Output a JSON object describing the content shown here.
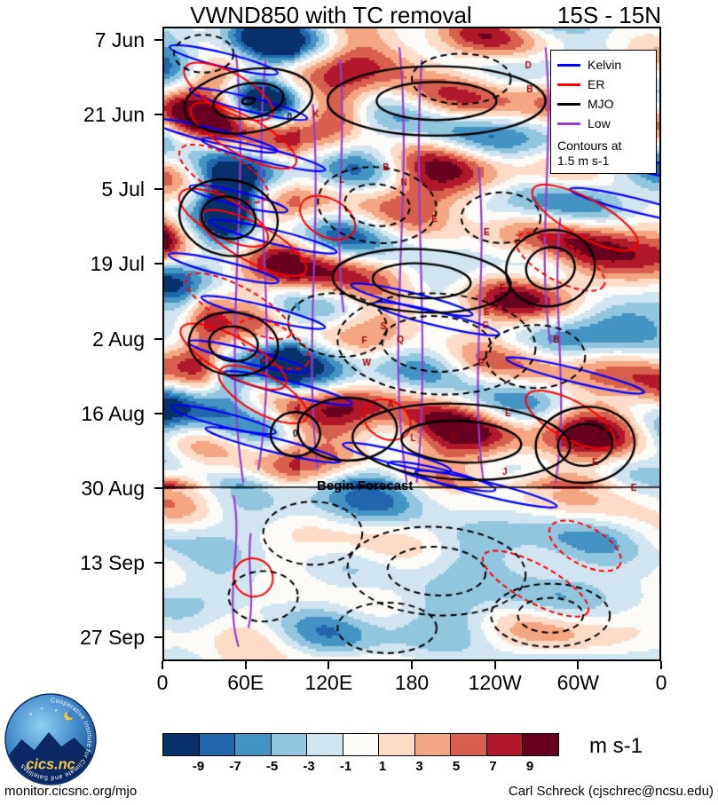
{
  "header": {
    "title": "VWND850 with TC removal",
    "lat_band": "15S - 15N"
  },
  "chart_data": {
    "type": "heatmap",
    "title": "VWND850 with TC removal",
    "lat_band": "15S - 15N",
    "description": "Time-longitude (Hovmoller) diagram of 850 hPa meridional wind anomalies with tropical cyclone removal, with wave-filtered contours overlaid",
    "x_ticks": [
      "0",
      "60E",
      "120E",
      "180",
      "120W",
      "60W",
      "0"
    ],
    "y_ticks": [
      "7 Jun",
      "21 Jun",
      "5 Jul",
      "19 Jul",
      "2 Aug",
      "16 Aug",
      "30 Aug",
      "13 Sep",
      "27 Sep"
    ],
    "annotation": "Begin Forecast",
    "forecast_fraction": 0.727,
    "legend": {
      "entries": [
        {
          "label": "Kelvin",
          "color": "#0000ff"
        },
        {
          "label": "ER",
          "color": "#ff0000"
        },
        {
          "label": "MJO",
          "color": "#000000"
        },
        {
          "label": "Low",
          "color": "#9440cf"
        }
      ],
      "note_line1": "Contours at",
      "note_line2": "1.5 m s-1"
    },
    "colorbar": {
      "labels": [
        "-9",
        "-7",
        "-5",
        "-3",
        "-1",
        "1",
        "3",
        "5",
        "7",
        "9"
      ],
      "colors": [
        "#08306b",
        "#2166ac",
        "#4393c3",
        "#92c5de",
        "#d1e5f0",
        "#fdfbf7",
        "#fddbc7",
        "#f4a582",
        "#d6604d",
        "#b2182b",
        "#67001f"
      ],
      "units": "m s-1"
    },
    "storm_markers": [
      {
        "letter": "K",
        "fx": 0.306,
        "fy": 0.137
      },
      {
        "letter": "0",
        "fx": 0.253,
        "fy": 0.141,
        "color": "#000000"
      },
      {
        "letter": "L",
        "fx": 0.359,
        "fy": 0.241
      },
      {
        "letter": "B",
        "fx": 0.448,
        "fy": 0.221
      },
      {
        "letter": "N",
        "fx": 0.484,
        "fy": 0.245
      },
      {
        "letter": "E",
        "fx": 0.546,
        "fy": 0.303
      },
      {
        "letter": "E",
        "fx": 0.651,
        "fy": 0.324
      },
      {
        "letter": "D",
        "fx": 0.735,
        "fy": 0.059
      },
      {
        "letter": "B",
        "fx": 0.738,
        "fy": 0.098
      },
      {
        "letter": "C",
        "fx": 0.815,
        "fy": 0.333
      },
      {
        "letter": "J",
        "fx": 0.345,
        "fy": 0.413
      },
      {
        "letter": "F",
        "fx": 0.683,
        "fy": 0.413
      },
      {
        "letter": "E",
        "fx": 0.651,
        "fy": 0.45
      },
      {
        "letter": "G",
        "fx": 0.649,
        "fy": 0.471
      },
      {
        "letter": "S",
        "fx": 0.443,
        "fy": 0.473
      },
      {
        "letter": "F",
        "fx": 0.404,
        "fy": 0.495
      },
      {
        "letter": "Q",
        "fx": 0.477,
        "fy": 0.494
      },
      {
        "letter": "W",
        "fx": 0.409,
        "fy": 0.531
      },
      {
        "letter": "E",
        "fx": 0.64,
        "fy": 0.53
      },
      {
        "letter": "B",
        "fx": 0.792,
        "fy": 0.494
      },
      {
        "letter": "A",
        "fx": 0.457,
        "fy": 0.596
      },
      {
        "letter": "E",
        "fx": 0.694,
        "fy": 0.611
      },
      {
        "letter": "D",
        "fx": 0.895,
        "fy": 0.634
      },
      {
        "letter": "L",
        "fx": 0.503,
        "fy": 0.65
      },
      {
        "letter": "K",
        "fx": 0.585,
        "fy": 0.649
      },
      {
        "letter": "I",
        "fx": 0.635,
        "fy": 0.685
      },
      {
        "letter": "J",
        "fx": 0.688,
        "fy": 0.703
      },
      {
        "letter": "E",
        "fx": 0.87,
        "fy": 0.688
      },
      {
        "letter": "E",
        "fx": 0.948,
        "fy": 0.729
      },
      {
        "letter": "0",
        "fx": 0.265,
        "fy": 0.643,
        "color": "#000000"
      }
    ]
  },
  "footer": {
    "left": "monitor.cicsnc.org/mjo",
    "right": "Carl Schreck (cjschrec@ncsu.edu)"
  },
  "logo": {
    "text": "cics.nc",
    "ring_text": "Cooperative Institute for Climate and Satellites"
  }
}
